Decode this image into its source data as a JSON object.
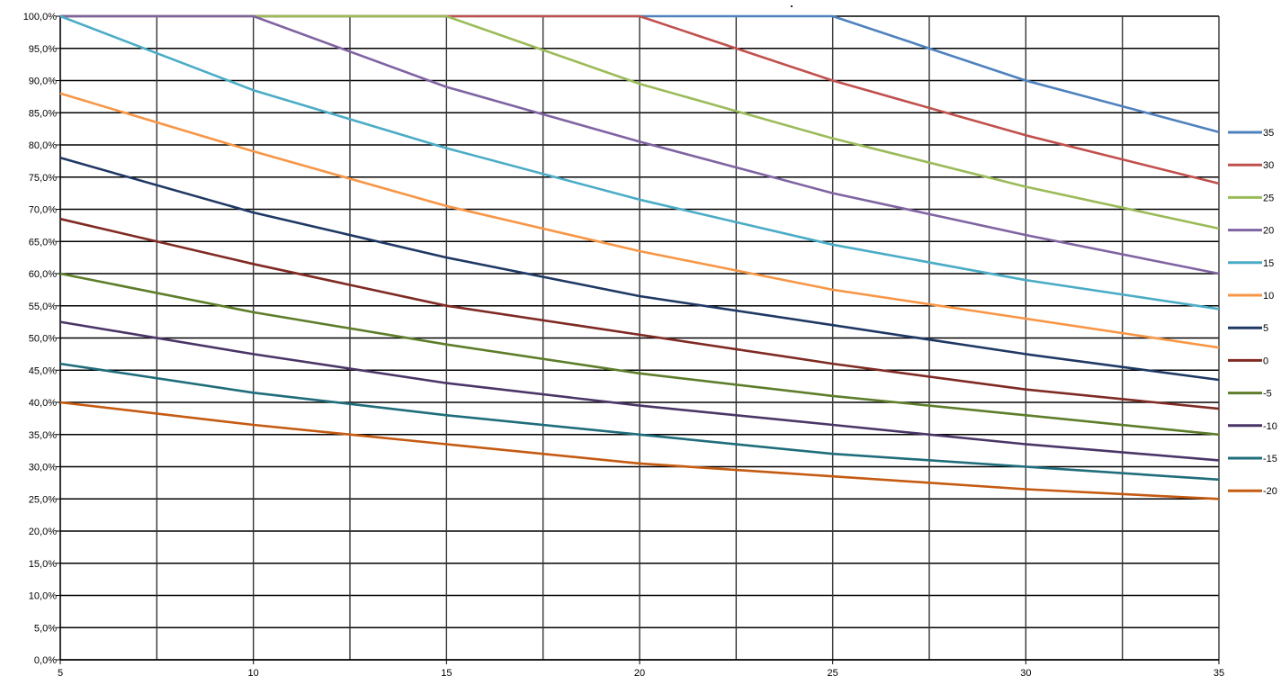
{
  "chart_data": {
    "type": "line",
    "title": ".",
    "xlabel": "",
    "ylabel": "",
    "xlim": [
      5,
      35
    ],
    "ylim": [
      0,
      100
    ],
    "x_ticks": [
      5,
      10,
      15,
      20,
      25,
      30,
      35
    ],
    "x_tick_labels": [
      "5",
      "10",
      "15",
      "20",
      "25",
      "30",
      "35"
    ],
    "y_ticks": [
      0,
      5,
      10,
      15,
      20,
      25,
      30,
      35,
      40,
      45,
      50,
      55,
      60,
      65,
      70,
      75,
      80,
      85,
      90,
      95,
      100
    ],
    "y_tick_labels": [
      "0,0%",
      "5,0%",
      "10,0%",
      "15,0%",
      "20,0%",
      "25,0%",
      "30,0%",
      "35,0%",
      "40,0%",
      "45,0%",
      "50,0%",
      "55,0%",
      "60,0%",
      "65,0%",
      "70,0%",
      "75,0%",
      "80,0%",
      "85,0%",
      "90,0%",
      "95,0%",
      "100,0%"
    ],
    "grid": true,
    "legend_position": "right",
    "x": [
      5,
      10,
      15,
      20,
      25,
      30,
      35
    ],
    "series": [
      {
        "name": "35",
        "color": "#4F81BD",
        "values": [
          100,
          100,
          100,
          100,
          100,
          90,
          82
        ]
      },
      {
        "name": "30",
        "color": "#C0504D",
        "values": [
          100,
          100,
          100,
          100,
          90,
          81.5,
          74
        ]
      },
      {
        "name": "25",
        "color": "#9BBB59",
        "values": [
          100,
          100,
          100,
          89.5,
          81,
          73.5,
          67
        ]
      },
      {
        "name": "20",
        "color": "#8064A2",
        "values": [
          100,
          100,
          89,
          80.5,
          72.5,
          66,
          60
        ]
      },
      {
        "name": "15",
        "color": "#4BACC6",
        "values": [
          100,
          88.5,
          79.5,
          71.5,
          64.5,
          59,
          54.5
        ]
      },
      {
        "name": "10",
        "color": "#F79646",
        "values": [
          88,
          79,
          70.5,
          63.5,
          57.5,
          53,
          48.5
        ]
      },
      {
        "name": "5",
        "color": "#1F3864",
        "values": [
          78,
          69.5,
          62.5,
          56.5,
          52,
          47.5,
          43.5
        ]
      },
      {
        "name": "0",
        "color": "#7F2A23",
        "values": [
          68.5,
          61.5,
          55,
          50.5,
          46,
          42,
          39
        ]
      },
      {
        "name": "-5",
        "color": "#5E7D2A",
        "values": [
          60,
          54,
          49,
          44.5,
          41,
          38,
          35
        ]
      },
      {
        "name": "-10",
        "color": "#4A3567",
        "values": [
          52.5,
          47.5,
          43,
          39.5,
          36.5,
          33.5,
          31
        ]
      },
      {
        "name": "-15",
        "color": "#1F6D7B",
        "values": [
          46,
          41.5,
          38,
          35,
          32,
          30,
          28
        ]
      },
      {
        "name": "-20",
        "color": "#C55A11",
        "values": [
          40,
          36.5,
          33.5,
          30.5,
          28.5,
          26.5,
          25
        ]
      }
    ]
  }
}
